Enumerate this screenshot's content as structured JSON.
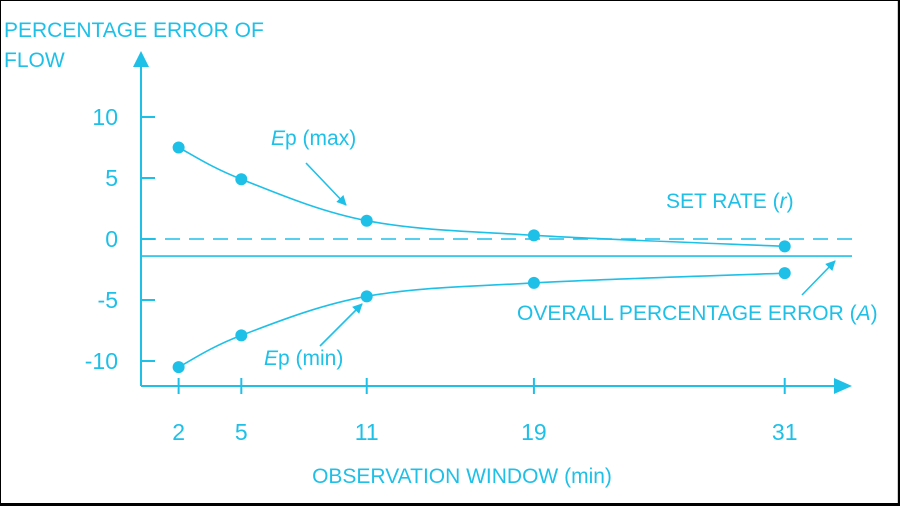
{
  "chart_data": {
    "type": "line",
    "ylabel_line1": "PERCENTAGE ERROR OF",
    "ylabel_line2": "FLOW",
    "xlabel": "OBSERVATION WINDOW (min)",
    "x": [
      2,
      5,
      11,
      19,
      31
    ],
    "x_tick_labels": [
      "2",
      "5",
      "11",
      "19",
      "31"
    ],
    "y_ticks": [
      10,
      5,
      0,
      -5,
      -10
    ],
    "y_tick_labels": [
      "10",
      "5",
      "0",
      "-5",
      "-10"
    ],
    "ylim": [
      -12.4,
      15
    ],
    "series": [
      {
        "name": "Ep (max)",
        "name_prefix": "E",
        "name_suffix": "p (max)",
        "values": [
          7.5,
          4.9,
          1.5,
          0.3,
          -0.6
        ]
      },
      {
        "name": "Ep (min)",
        "name_prefix": "E",
        "name_suffix": "p (min)",
        "values": [
          -10.5,
          -7.9,
          -4.7,
          -3.6,
          -2.8
        ]
      }
    ],
    "set_rate": {
      "value": 0,
      "label_main": "SET RATE (",
      "label_var": "r",
      "label_end": ")"
    },
    "overall_error": {
      "value": -1.4,
      "label_main": "OVERALL PERCENTAGE ERROR (",
      "label_var": "A",
      "label_end": ")"
    },
    "color": "#1ec0e8"
  }
}
